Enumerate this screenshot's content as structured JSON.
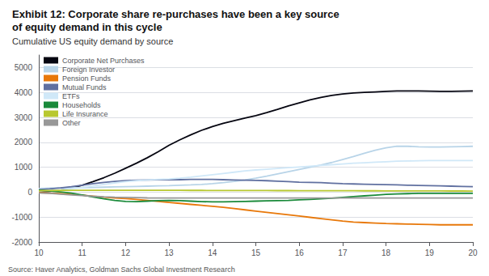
{
  "chart_data": {
    "type": "line",
    "title": "Exhibit 12: Corporate share re-purchases have been a key source\nof equity demand in this cycle",
    "subtitle": "Cumulative US equity demand by source",
    "annotations": [
      "Source: Haver Analytics, Goldman Sachs Global Investment Research"
    ],
    "x": [
      10,
      10.25,
      10.5,
      10.75,
      11,
      11.25,
      11.5,
      11.75,
      12,
      12.25,
      12.5,
      12.75,
      13,
      13.25,
      13.5,
      13.75,
      14,
      14.25,
      14.5,
      14.75,
      15,
      15.25,
      15.5,
      15.75,
      16,
      16.25,
      16.5,
      16.75,
      17,
      17.25,
      17.5,
      17.75,
      18,
      18.25,
      18.5,
      18.75,
      19,
      19.25,
      19.5,
      19.75,
      20
    ],
    "xlim": [
      10,
      20
    ],
    "xticks": [
      10,
      11,
      12,
      13,
      14,
      15,
      16,
      17,
      18,
      19,
      20
    ],
    "ylim": [
      -2000,
      5500
    ],
    "yticks": [
      -2000,
      -1000,
      0,
      1000,
      2000,
      3000,
      4000,
      5000
    ],
    "grid": true,
    "legend": "upper left",
    "series": [
      {
        "name": "Corporate Net Purchases",
        "color": "#050510",
        "values": [
          0,
          30,
          80,
          160,
          280,
          420,
          580,
          760,
          960,
          1160,
          1380,
          1620,
          1880,
          2100,
          2300,
          2480,
          2630,
          2760,
          2870,
          2970,
          3070,
          3190,
          3320,
          3460,
          3580,
          3700,
          3800,
          3880,
          3940,
          3980,
          4000,
          4020,
          4040,
          4060,
          4060,
          4060,
          4050,
          4040,
          4040,
          4050,
          4060
        ]
      },
      {
        "name": "Foreign Investor",
        "color": "#b8d4e8",
        "values": [
          150,
          160,
          170,
          175,
          180,
          190,
          200,
          210,
          220,
          230,
          240,
          250,
          260,
          275,
          290,
          310,
          340,
          380,
          430,
          490,
          560,
          640,
          730,
          820,
          910,
          1000,
          1090,
          1190,
          1310,
          1430,
          1560,
          1680,
          1780,
          1840,
          1840,
          1820,
          1810,
          1810,
          1820,
          1830,
          1840
        ]
      },
      {
        "name": "Pension Funds",
        "color": "#e8780a",
        "values": [
          -20,
          -40,
          -60,
          -90,
          -120,
          -160,
          -200,
          -230,
          -260,
          -290,
          -330,
          -370,
          -410,
          -450,
          -490,
          -530,
          -570,
          -610,
          -660,
          -710,
          -760,
          -810,
          -860,
          -910,
          -960,
          -1010,
          -1060,
          -1110,
          -1160,
          -1200,
          -1220,
          -1240,
          -1260,
          -1270,
          -1280,
          -1290,
          -1300,
          -1310,
          -1310,
          -1310,
          -1310
        ]
      },
      {
        "name": "Mutual Funds",
        "color": "#6070a0",
        "values": [
          100,
          130,
          170,
          220,
          280,
          340,
          390,
          430,
          460,
          480,
          490,
          500,
          500,
          500,
          510,
          510,
          510,
          500,
          490,
          480,
          470,
          460,
          440,
          420,
          400,
          390,
          380,
          360,
          340,
          330,
          320,
          310,
          300,
          290,
          280,
          270,
          260,
          250,
          240,
          230,
          220
        ]
      },
      {
        "name": "ETFs",
        "color": "#d0e8f8",
        "values": [
          50,
          70,
          100,
          140,
          190,
          250,
          310,
          370,
          420,
          460,
          490,
          510,
          530,
          560,
          600,
          650,
          700,
          750,
          800,
          850,
          890,
          920,
          950,
          980,
          1010,
          1040,
          1070,
          1100,
          1130,
          1160,
          1180,
          1200,
          1220,
          1240,
          1250,
          1260,
          1270,
          1270,
          1270,
          1270,
          1270
        ]
      },
      {
        "name": "Households",
        "color": "#1a8a3a",
        "values": [
          80,
          50,
          10,
          -40,
          -110,
          -190,
          -270,
          -330,
          -370,
          -380,
          -360,
          -340,
          -330,
          -340,
          -360,
          -380,
          -390,
          -390,
          -380,
          -370,
          -360,
          -350,
          -340,
          -330,
          -310,
          -290,
          -270,
          -240,
          -210,
          -180,
          -150,
          -120,
          -90,
          -70,
          -60,
          -50,
          -50,
          -50,
          -50,
          -50,
          -50
        ]
      },
      {
        "name": "Life Insurance",
        "color": "#b8c830",
        "values": [
          60,
          65,
          70,
          72,
          74,
          76,
          76,
          76,
          76,
          75,
          74,
          73,
          72,
          71,
          70,
          69,
          68,
          67,
          66,
          65,
          64,
          63,
          62,
          61,
          60,
          59,
          58,
          57,
          56,
          55,
          54,
          53,
          52,
          51,
          50,
          49,
          48,
          47,
          46,
          45,
          44
        ]
      },
      {
        "name": "Other",
        "color": "#989898",
        "values": [
          -30,
          -50,
          -80,
          -110,
          -140,
          -165,
          -185,
          -200,
          -210,
          -220,
          -230,
          -235,
          -235,
          -235,
          -235,
          -235,
          -235,
          -235,
          -235,
          -235,
          -235,
          -235,
          -235,
          -235,
          -235,
          -235,
          -235,
          -235,
          -235,
          -235,
          -235,
          -235,
          -235,
          -235,
          -235,
          -235,
          -235,
          -235,
          -235,
          -235,
          -235
        ]
      }
    ]
  }
}
